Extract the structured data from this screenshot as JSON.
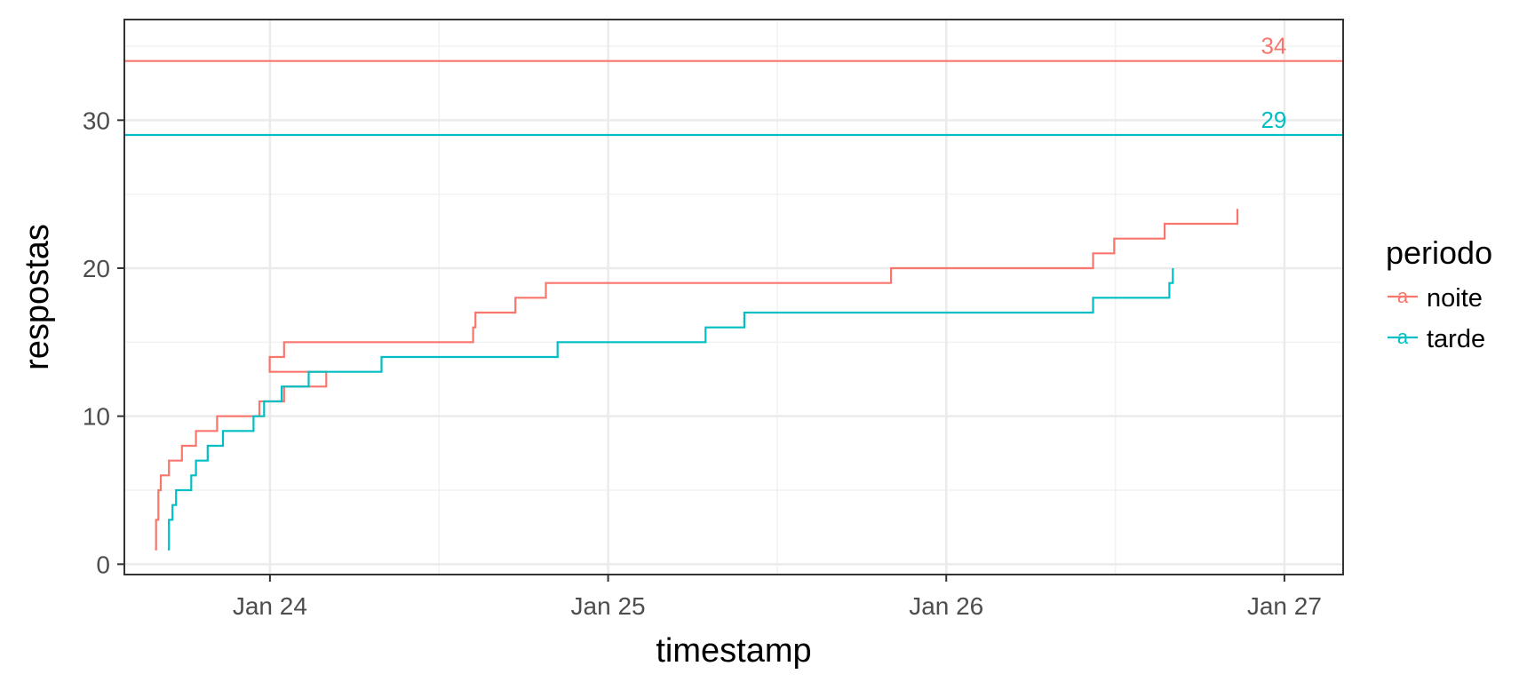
{
  "chart_data": {
    "type": "line",
    "step": true,
    "xlabel": "timestamp",
    "ylabel": "respostas",
    "x_ticks": [
      "Jan 24",
      "Jan 25",
      "Jan 26",
      "Jan 27"
    ],
    "y_ticks": [
      "0",
      "10",
      "20",
      "30"
    ],
    "xlim": [
      "2024-01-23T13:40",
      "2024-01-27T04:10"
    ],
    "ylim": [
      -0.7,
      36.8
    ],
    "grid": true,
    "legend_title": "periodo",
    "legend_position": "right",
    "series": [
      {
        "name": "noite",
        "color": "#F8766D",
        "points": [
          [
            "2024-01-23T15:50",
            1
          ],
          [
            "2024-01-23T15:55",
            3
          ],
          [
            "2024-01-23T16:05",
            5
          ],
          [
            "2024-01-23T16:15",
            6
          ],
          [
            "2024-01-23T16:50",
            7
          ],
          [
            "2024-01-23T17:45",
            8
          ],
          [
            "2024-01-23T18:45",
            9
          ],
          [
            "2024-01-23T20:15",
            10
          ],
          [
            "2024-01-23T23:15",
            11
          ],
          [
            "2024-01-24T01:00",
            12
          ],
          [
            "2024-01-24T04:00",
            13
          ],
          [
            "2024-01-23T23:59",
            14
          ],
          [
            "2024-01-24T00:00",
            14
          ],
          [
            "2024-01-24T01:00",
            15
          ],
          [
            "2024-01-24T14:25",
            16
          ],
          [
            "2024-01-24T14:35",
            17
          ],
          [
            "2024-01-24T17:25",
            18
          ],
          [
            "2024-01-24T19:35",
            19
          ],
          [
            "2024-01-25T20:05",
            20
          ],
          [
            "2024-01-26T10:25",
            21
          ],
          [
            "2024-01-26T11:55",
            22
          ],
          [
            "2024-01-26T15:30",
            23
          ],
          [
            "2024-01-26T20:40",
            24
          ]
        ],
        "reference_line": 34
      },
      {
        "name": "tarde",
        "color": "#00BFC4",
        "points": [
          [
            "2024-01-23T16:45",
            1
          ],
          [
            "2024-01-23T16:50",
            3
          ],
          [
            "2024-01-23T17:05",
            4
          ],
          [
            "2024-01-23T17:20",
            5
          ],
          [
            "2024-01-23T18:25",
            6
          ],
          [
            "2024-01-23T18:45",
            7
          ],
          [
            "2024-01-23T19:35",
            8
          ],
          [
            "2024-01-23T20:40",
            9
          ],
          [
            "2024-01-23T22:50",
            10
          ],
          [
            "2024-01-23T23:35",
            11
          ],
          [
            "2024-01-24T00:50",
            12
          ],
          [
            "2024-01-24T02:45",
            13
          ],
          [
            "2024-01-24T07:55",
            14
          ],
          [
            "2024-01-24T20:25",
            15
          ],
          [
            "2024-01-25T06:55",
            16
          ],
          [
            "2024-01-25T09:40",
            17
          ],
          [
            "2024-01-26T10:25",
            18
          ],
          [
            "2024-01-26T15:50",
            19
          ],
          [
            "2024-01-26T16:05",
            20
          ]
        ],
        "reference_line": 29
      }
    ],
    "annotations": [
      "34",
      "29"
    ]
  }
}
